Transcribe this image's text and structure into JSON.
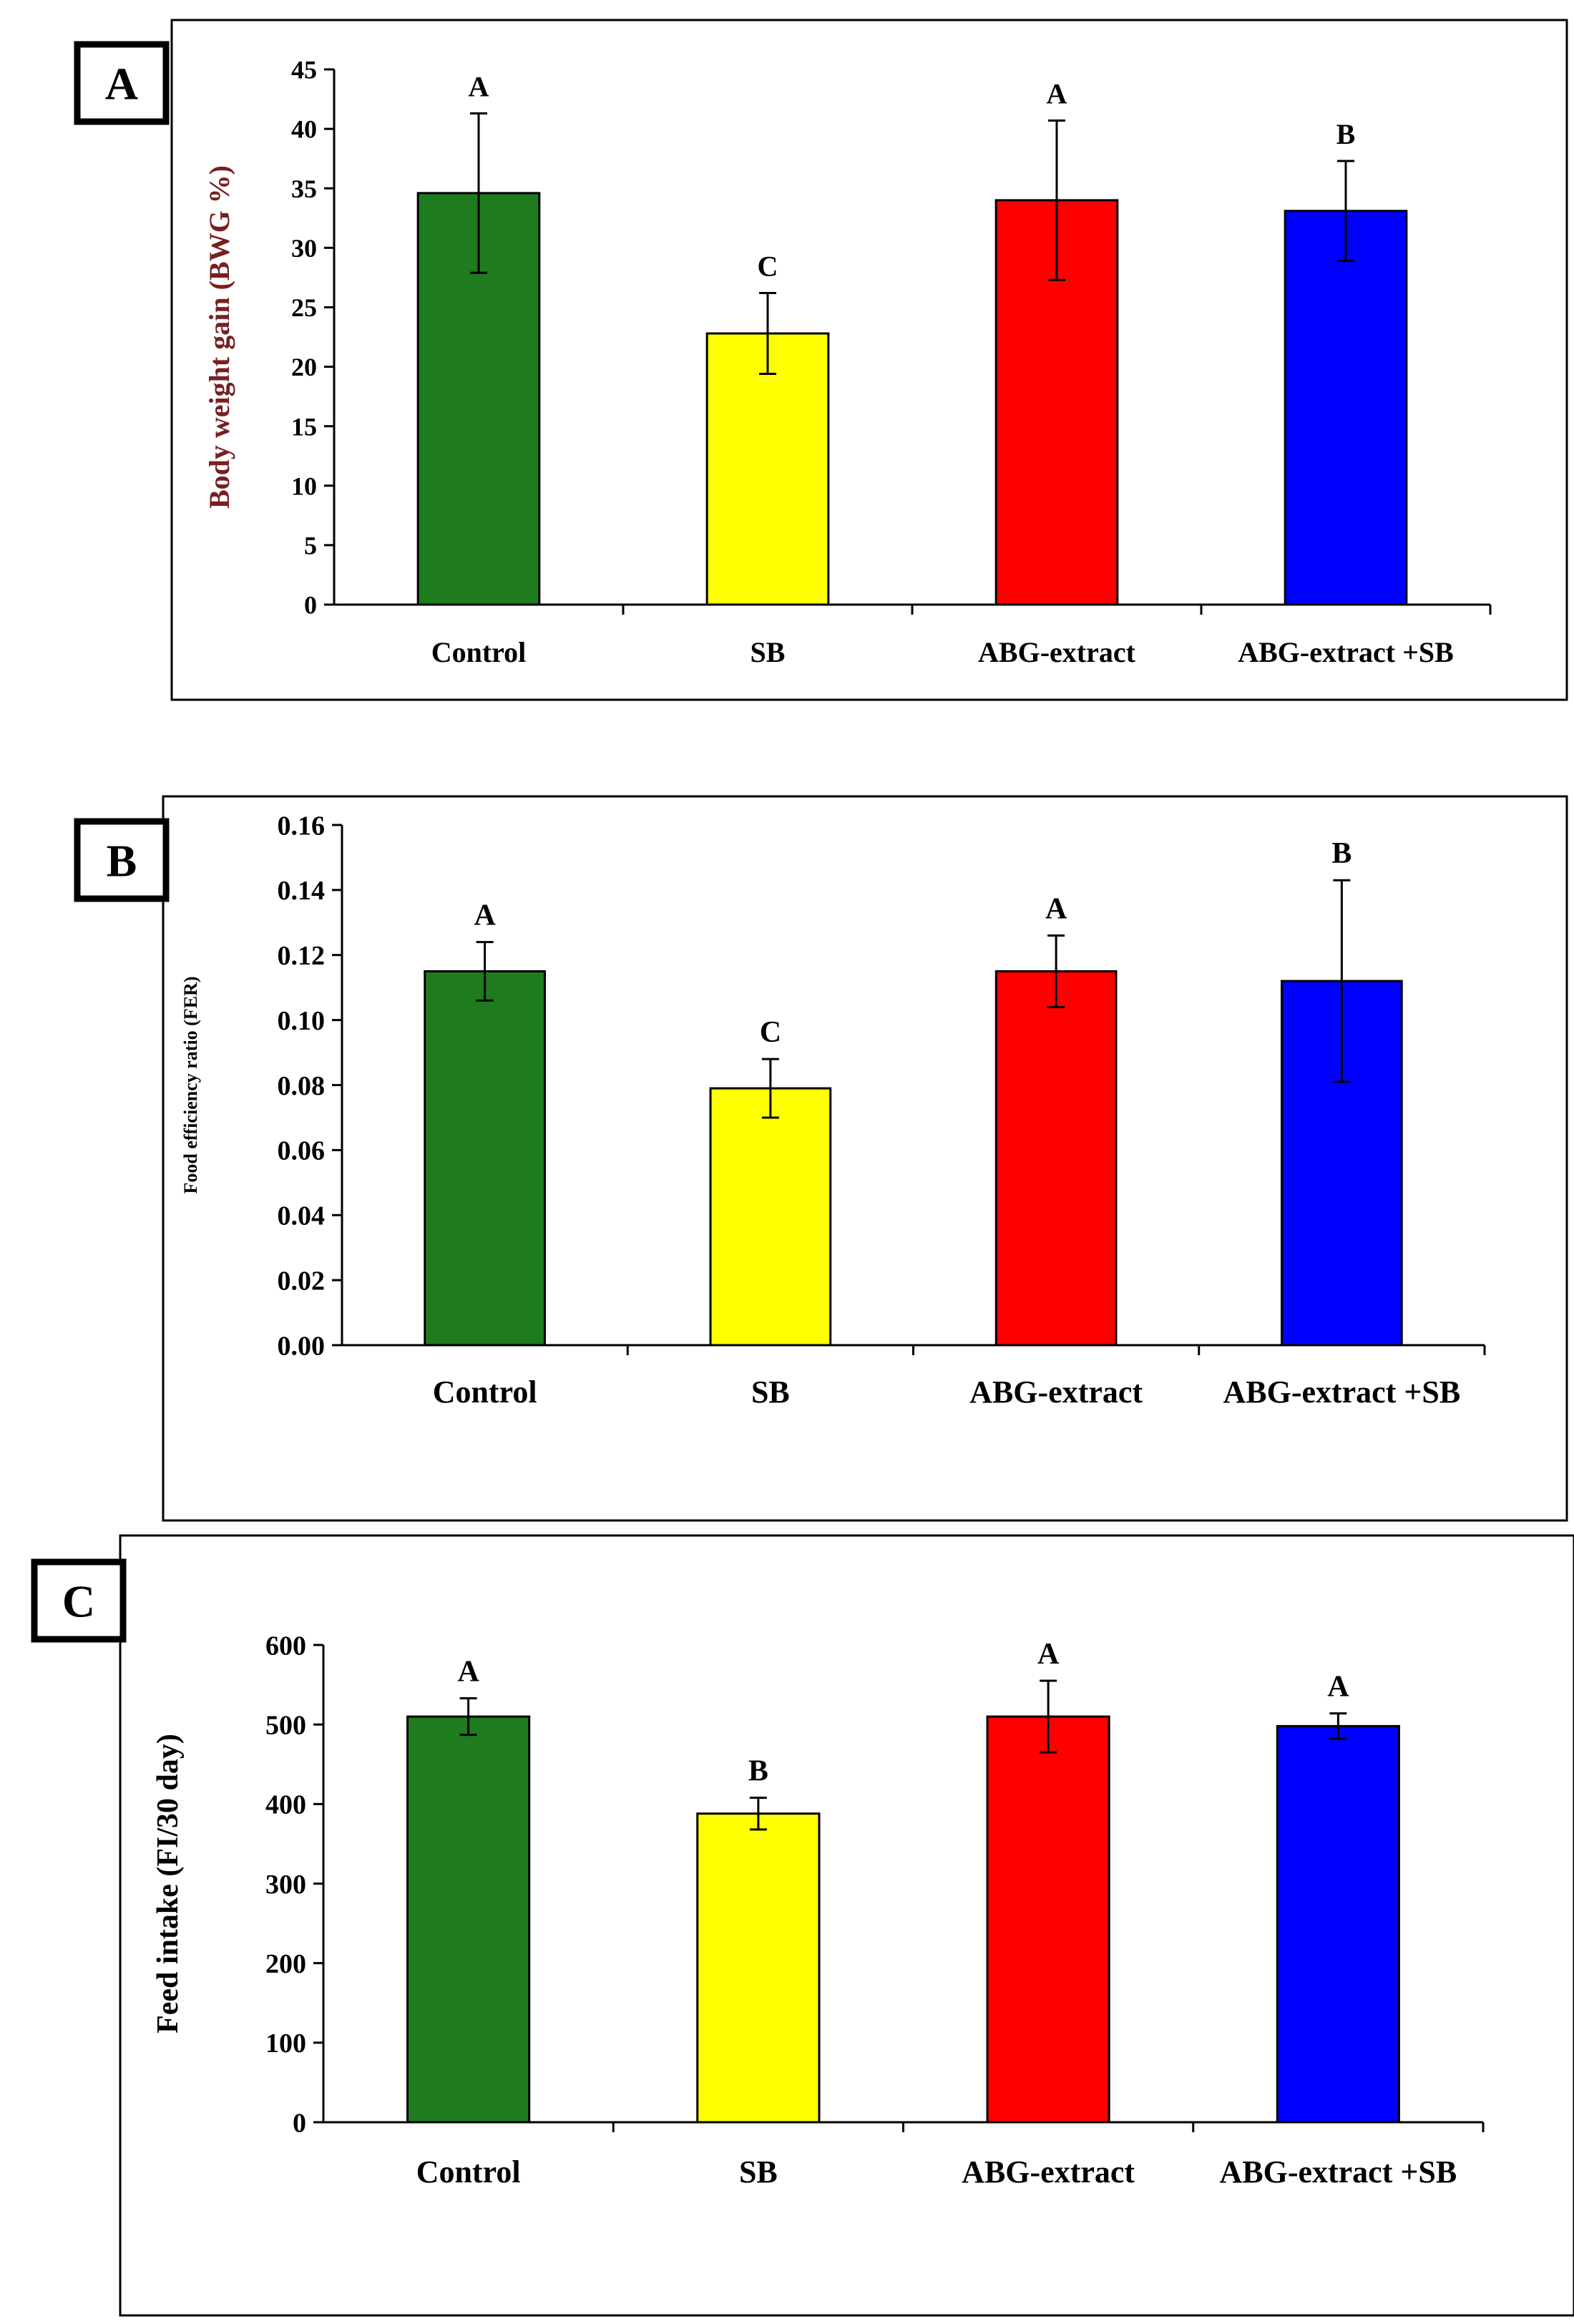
{
  "figure": {
    "panels": [
      "A",
      "B",
      "C"
    ]
  },
  "colors": {
    "Control": "#1e7b1e",
    "SB": "#ffff00",
    "ABG-extract": "#ff0000",
    "ABG-extract +SB": "#0000ff"
  },
  "chart_data": [
    {
      "type": "bar",
      "panel_label": "A",
      "title": "",
      "xlabel": "",
      "ylabel": "Body weight gain (BWG %)",
      "ylim": [
        0,
        45
      ],
      "yticks": [
        "0",
        "5",
        "10",
        "15",
        "20",
        "25",
        "30",
        "35",
        "40",
        "45"
      ],
      "categories": [
        "Control",
        "SB",
        "ABG-extract",
        "ABG-extract +SB"
      ],
      "values": [
        34.6,
        22.8,
        34.0,
        33.1
      ],
      "errors": [
        6.7,
        3.4,
        6.7,
        4.2
      ],
      "significance": [
        "A",
        "C",
        "A",
        "B"
      ]
    },
    {
      "type": "bar",
      "panel_label": "B",
      "title": "",
      "xlabel": "",
      "ylabel": "Food efficiency ratio (FER)",
      "ylim": [
        0,
        0.16
      ],
      "yticks": [
        "0.00",
        "0.02",
        "0.04",
        "0.06",
        "0.08",
        "0.10",
        "0.12",
        "0.14",
        "0.16"
      ],
      "categories": [
        "Control",
        "SB",
        "ABG-extract",
        "ABG-extract +SB"
      ],
      "values": [
        0.115,
        0.079,
        0.115,
        0.112
      ],
      "errors": [
        0.009,
        0.009,
        0.011,
        0.031
      ],
      "significance": [
        "A",
        "C",
        "A",
        "B"
      ]
    },
    {
      "type": "bar",
      "panel_label": "C",
      "title": "",
      "xlabel": "",
      "ylabel": "Feed intake  (FI/30 day)",
      "ylim": [
        0,
        600
      ],
      "yticks": [
        "0",
        "100",
        "200",
        "300",
        "400",
        "500",
        "600"
      ],
      "categories": [
        "Control",
        "SB",
        "ABG-extract",
        "ABG-extract +SB"
      ],
      "values": [
        510,
        388,
        510,
        498
      ],
      "errors": [
        23,
        20,
        45,
        16
      ],
      "significance": [
        "A",
        "B",
        "A",
        "A"
      ]
    }
  ]
}
